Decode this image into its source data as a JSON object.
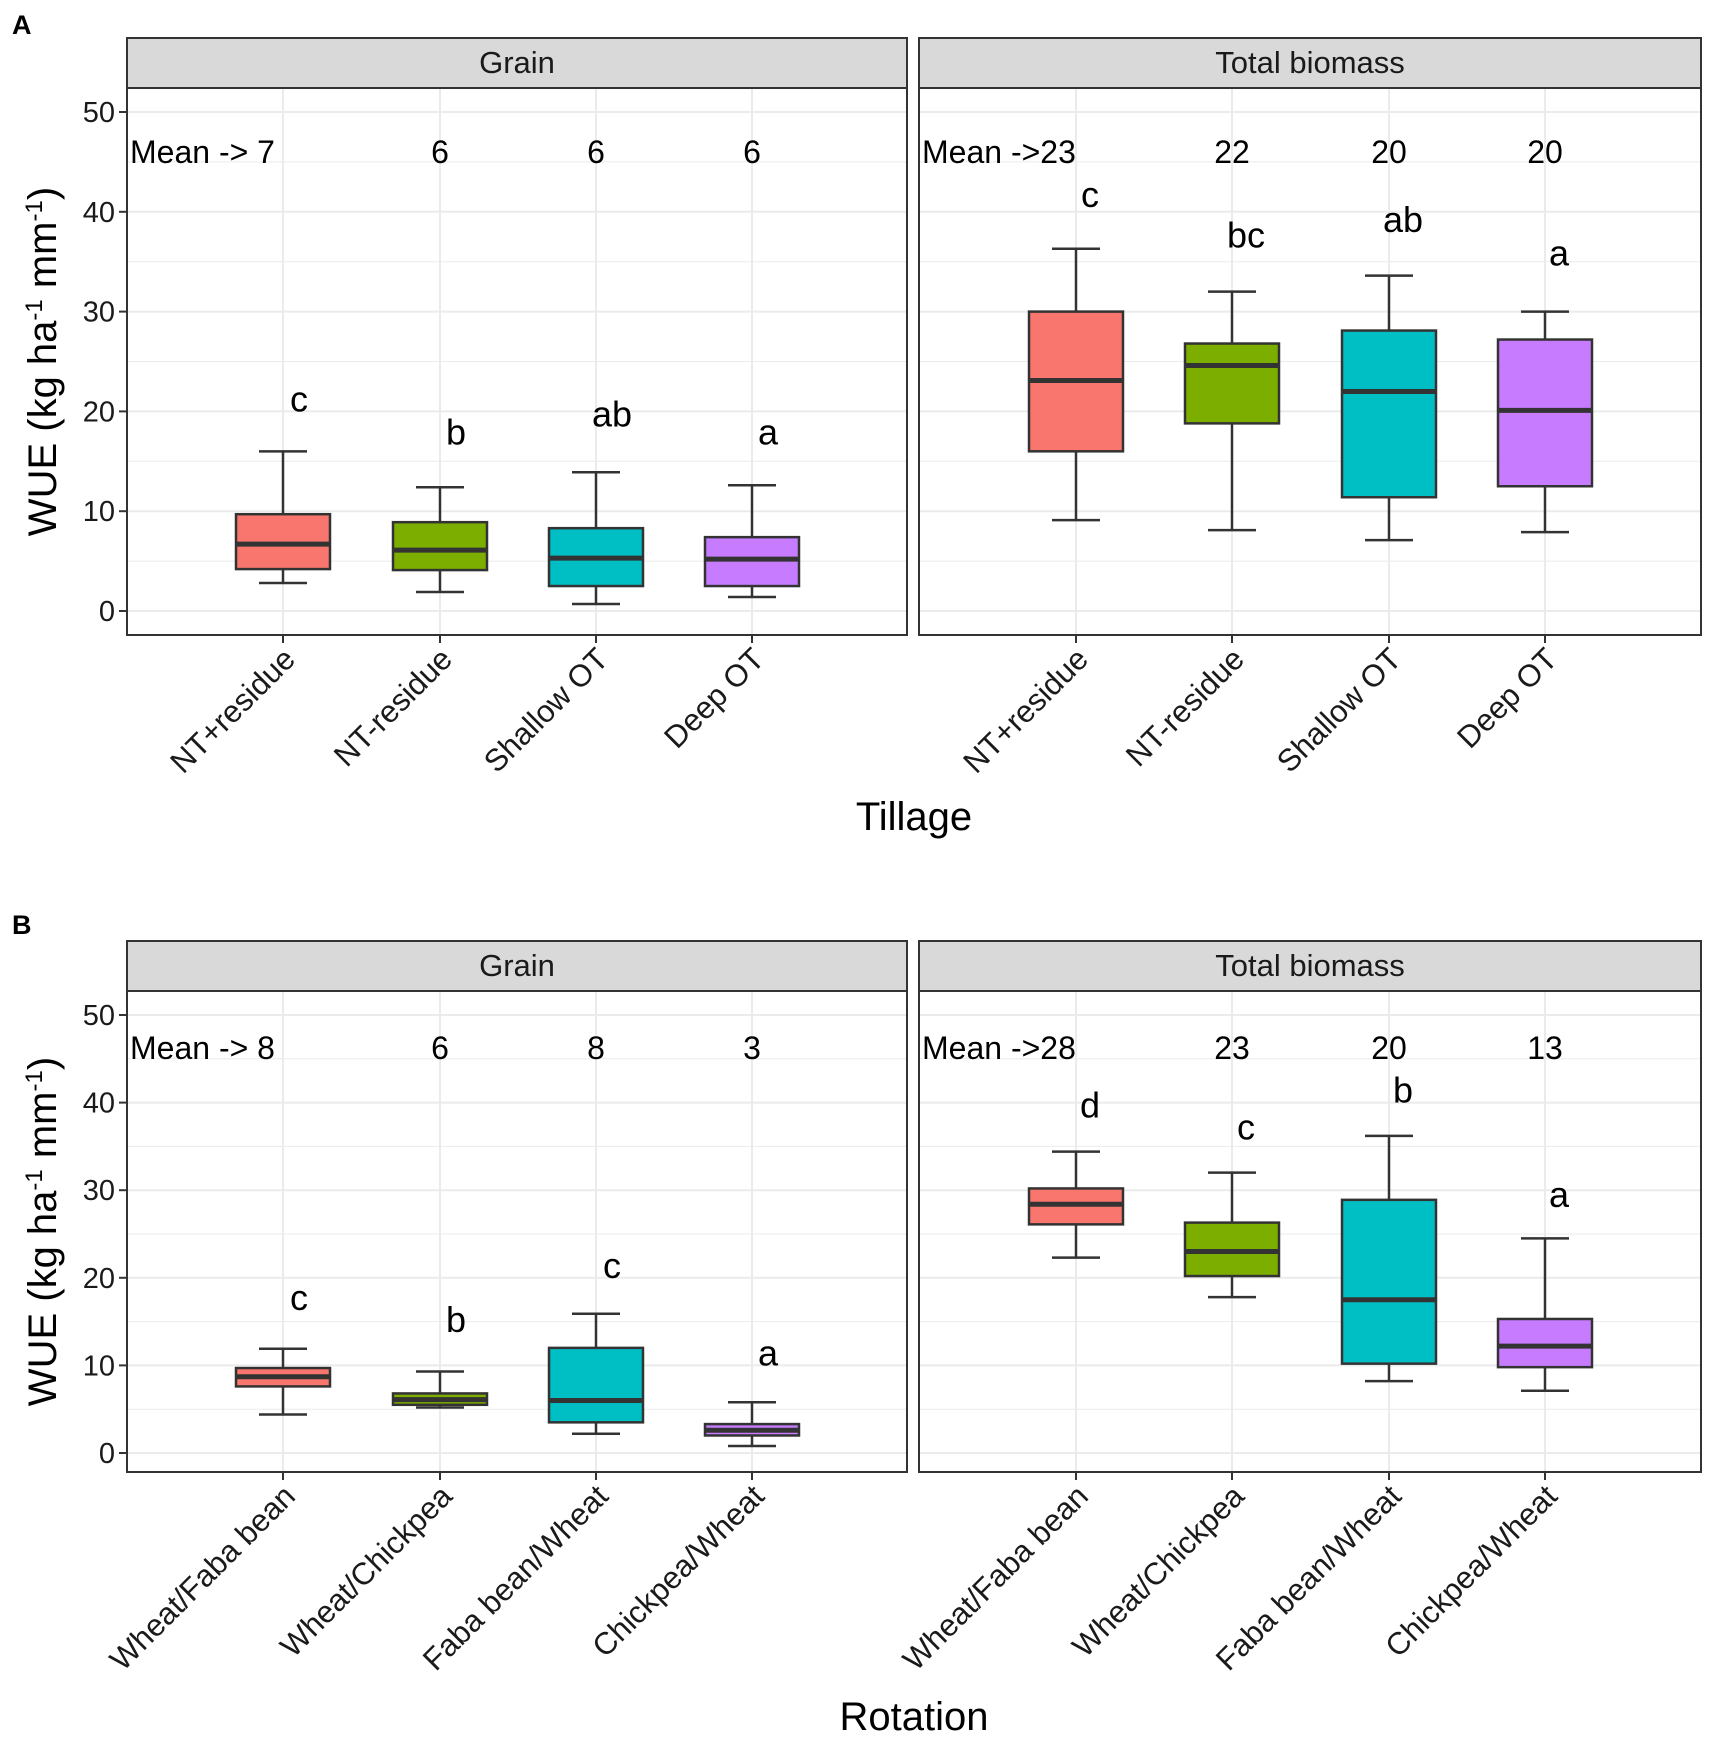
{
  "figure": {
    "ylabel": "WUE (kg ha",
    "ylabel_sup1": "-1",
    "ylabel_mid": " mm",
    "ylabel_sup2": "-1",
    "ylabel_end": ")",
    "colors": [
      "#F8766D",
      "#7CAE00",
      "#00BFC4",
      "#C77CFF"
    ],
    "strip_fill": "#D9D9D9",
    "grid_color": "#EBEBEB"
  },
  "chart_data": [
    {
      "type": "boxplot",
      "panel_label": "A",
      "xlabel": "Tillage",
      "ylabel": "WUE (kg ha-1 mm-1)",
      "ylim": [
        -2.5,
        52.5
      ],
      "yticks": [
        0,
        10,
        20,
        30,
        40,
        50
      ],
      "grid": true,
      "categories": [
        "NT+residue",
        "NT-residue",
        "Shallow OT",
        "Deep OT"
      ],
      "facets": [
        {
          "title": "Grain",
          "means": [
            "Mean -> 7",
            "6",
            "6",
            "6"
          ],
          "letters": [
            "c",
            "b",
            "ab",
            "a"
          ],
          "letter_y": [
            20,
            16.7,
            18.5,
            16.7
          ],
          "boxes": [
            {
              "min": 2.8,
              "q1": 4.2,
              "median": 6.7,
              "q3": 9.7,
              "max": 16
            },
            {
              "min": 1.9,
              "q1": 4.1,
              "median": 6.1,
              "q3": 8.9,
              "max": 12.4
            },
            {
              "min": 0.7,
              "q1": 2.5,
              "median": 5.3,
              "q3": 8.3,
              "max": 13.9
            },
            {
              "min": 1.4,
              "q1": 2.5,
              "median": 5.2,
              "q3": 7.4,
              "max": 12.6
            }
          ]
        },
        {
          "title": "Total biomass",
          "means": [
            "Mean ->23",
            "22",
            "20",
            "20"
          ],
          "letters": [
            "c",
            "bc",
            "ab",
            "a"
          ],
          "letter_y": [
            40.5,
            36.4,
            38,
            34.6
          ],
          "boxes": [
            {
              "min": 9.1,
              "q1": 16,
              "median": 23.1,
              "q3": 30,
              "max": 36.3
            },
            {
              "min": 8.1,
              "q1": 18.8,
              "median": 24.6,
              "q3": 26.8,
              "max": 32
            },
            {
              "min": 7.1,
              "q1": 11.4,
              "median": 22,
              "q3": 28.1,
              "max": 33.6
            },
            {
              "min": 7.9,
              "q1": 12.5,
              "median": 20.1,
              "q3": 27.2,
              "max": 30
            }
          ]
        }
      ]
    },
    {
      "type": "boxplot",
      "panel_label": "B",
      "xlabel": "Rotation",
      "ylabel": "WUE (kg ha-1 mm-1)",
      "ylim": [
        -2.5,
        52.5
      ],
      "yticks": [
        0,
        10,
        20,
        30,
        40,
        50
      ],
      "grid": true,
      "categories": [
        "Wheat/Faba bean",
        "Wheat/Chickpea",
        "Faba bean/Wheat",
        "Chickpea/Wheat"
      ],
      "facets": [
        {
          "title": "Grain",
          "means": [
            "Mean -> 8",
            "6",
            "8",
            "3"
          ],
          "letters": [
            "c",
            "b",
            "c",
            "a"
          ],
          "letter_y": [
            16.3,
            13.8,
            20,
            10
          ],
          "boxes": [
            {
              "min": 4.4,
              "q1": 7.6,
              "median": 8.7,
              "q3": 9.7,
              "max": 11.9
            },
            {
              "min": 5.2,
              "q1": 5.5,
              "median": 6.1,
              "q3": 6.8,
              "max": 9.3
            },
            {
              "min": 2.2,
              "q1": 3.5,
              "median": 6,
              "q3": 12,
              "max": 15.9
            },
            {
              "min": 0.8,
              "q1": 2,
              "median": 2.6,
              "q3": 3.3,
              "max": 5.8
            }
          ]
        },
        {
          "title": "Total biomass",
          "means": [
            "Mean ->28",
            "23",
            "20",
            "13"
          ],
          "letters": [
            "d",
            "c",
            "b",
            "a"
          ],
          "letter_y": [
            38.3,
            35.8,
            40,
            28.1
          ],
          "boxes": [
            {
              "min": 22.3,
              "q1": 26.1,
              "median": 28.4,
              "q3": 30.2,
              "max": 34.4
            },
            {
              "min": 17.8,
              "q1": 20.2,
              "median": 23,
              "q3": 26.3,
              "max": 32
            },
            {
              "min": 8.2,
              "q1": 10.2,
              "median": 17.5,
              "q3": 28.9,
              "max": 36.2
            },
            {
              "min": 7.1,
              "q1": 9.8,
              "median": 12.2,
              "q3": 15.3,
              "max": 24.5
            }
          ]
        }
      ]
    }
  ]
}
